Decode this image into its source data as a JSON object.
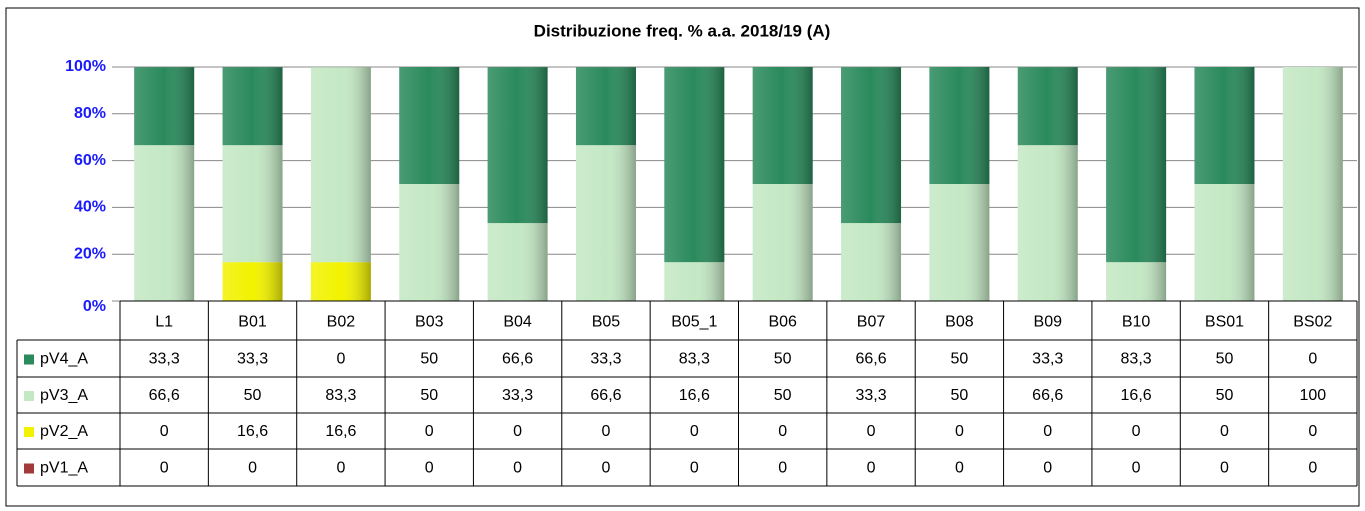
{
  "chart_data": {
    "type": "bar",
    "stacked": true,
    "title": "Distribuzione freq. % a.a. 2018/19 (A)",
    "categories": [
      "L1",
      "B01",
      "B02",
      "B03",
      "B04",
      "B05",
      "B05_1",
      "B06",
      "B07",
      "B08",
      "B09",
      "B10",
      "BS01",
      "BS02"
    ],
    "series": [
      {
        "name": "pV4_A",
        "color": "#2a8a5c",
        "values": [
          33.3,
          33.3,
          0,
          50,
          66.6,
          33.3,
          83.3,
          50,
          66.6,
          50,
          33.3,
          83.3,
          50,
          0
        ],
        "value_labels": [
          "33,3",
          "33,3",
          "0",
          "50",
          "66,6",
          "33,3",
          "83,3",
          "50",
          "66,6",
          "50",
          "33,3",
          "83,3",
          "50",
          "0"
        ]
      },
      {
        "name": "pV3_A",
        "color": "#c4e8c4",
        "values": [
          66.6,
          50,
          83.3,
          50,
          33.3,
          66.6,
          16.6,
          50,
          33.3,
          50,
          66.6,
          16.6,
          50,
          100
        ],
        "value_labels": [
          "66,6",
          "50",
          "83,3",
          "50",
          "33,3",
          "66,6",
          "16,6",
          "50",
          "33,3",
          "50",
          "66,6",
          "16,6",
          "50",
          "100"
        ]
      },
      {
        "name": "pV2_A",
        "color": "#f2f200",
        "values": [
          0,
          16.6,
          16.6,
          0,
          0,
          0,
          0,
          0,
          0,
          0,
          0,
          0,
          0,
          0
        ],
        "value_labels": [
          "0",
          "16,6",
          "16,6",
          "0",
          "0",
          "0",
          "0",
          "0",
          "0",
          "0",
          "0",
          "0",
          "0",
          "0"
        ]
      },
      {
        "name": "pV1_A",
        "color": "#a33a3a",
        "values": [
          0,
          0,
          0,
          0,
          0,
          0,
          0,
          0,
          0,
          0,
          0,
          0,
          0,
          0
        ],
        "value_labels": [
          "0",
          "0",
          "0",
          "0",
          "0",
          "0",
          "0",
          "0",
          "0",
          "0",
          "0",
          "0",
          "0",
          "0"
        ]
      }
    ],
    "ylim": [
      0,
      100
    ],
    "yticks": [
      {
        "value": 0,
        "label": "0%"
      },
      {
        "value": 20,
        "label": "20%"
      },
      {
        "value": 40,
        "label": "40%"
      },
      {
        "value": 60,
        "label": "60%"
      },
      {
        "value": 80,
        "label": "80%"
      },
      {
        "value": 100,
        "label": "100%"
      }
    ],
    "grid": true
  }
}
